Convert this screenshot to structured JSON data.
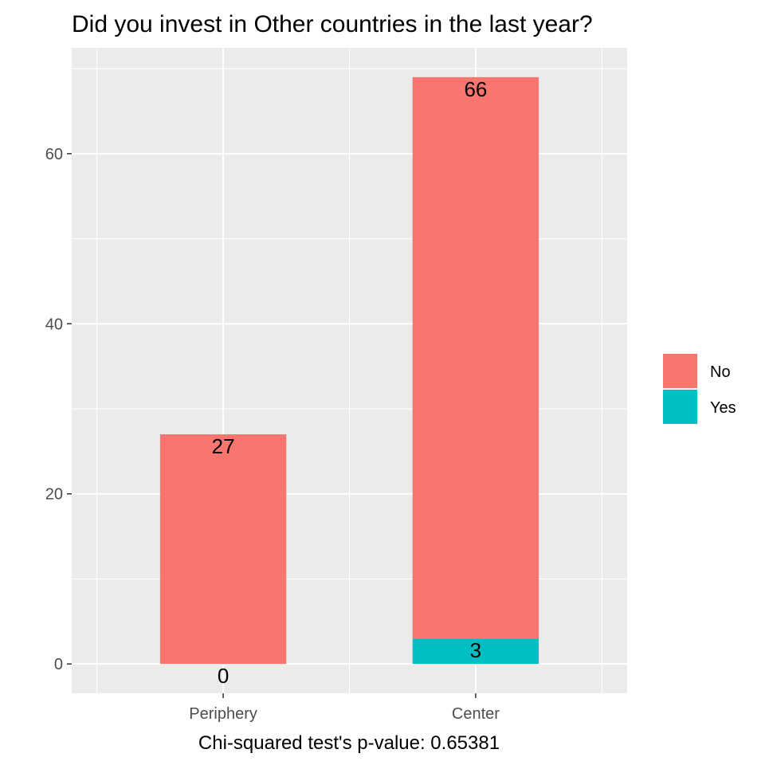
{
  "chart_data": {
    "type": "bar",
    "stacked": true,
    "title": "Did you invest in Other countries in the last year?",
    "xlabel": "Chi-squared test's p-value: 0.65381",
    "ylabel": "",
    "categories": [
      "Periphery",
      "Center"
    ],
    "series": [
      {
        "name": "No",
        "values": [
          27,
          66
        ],
        "color": "#F8766D"
      },
      {
        "name": "Yes",
        "values": [
          0,
          3
        ],
        "color": "#00BFC4"
      }
    ],
    "ylim": [
      -3.45,
      72.45
    ],
    "yticks": [
      0,
      20,
      40,
      60
    ],
    "grid": true,
    "legend_position": "right",
    "panel_color": "#EBEBEB",
    "grid_color": "#FFFFFF"
  }
}
